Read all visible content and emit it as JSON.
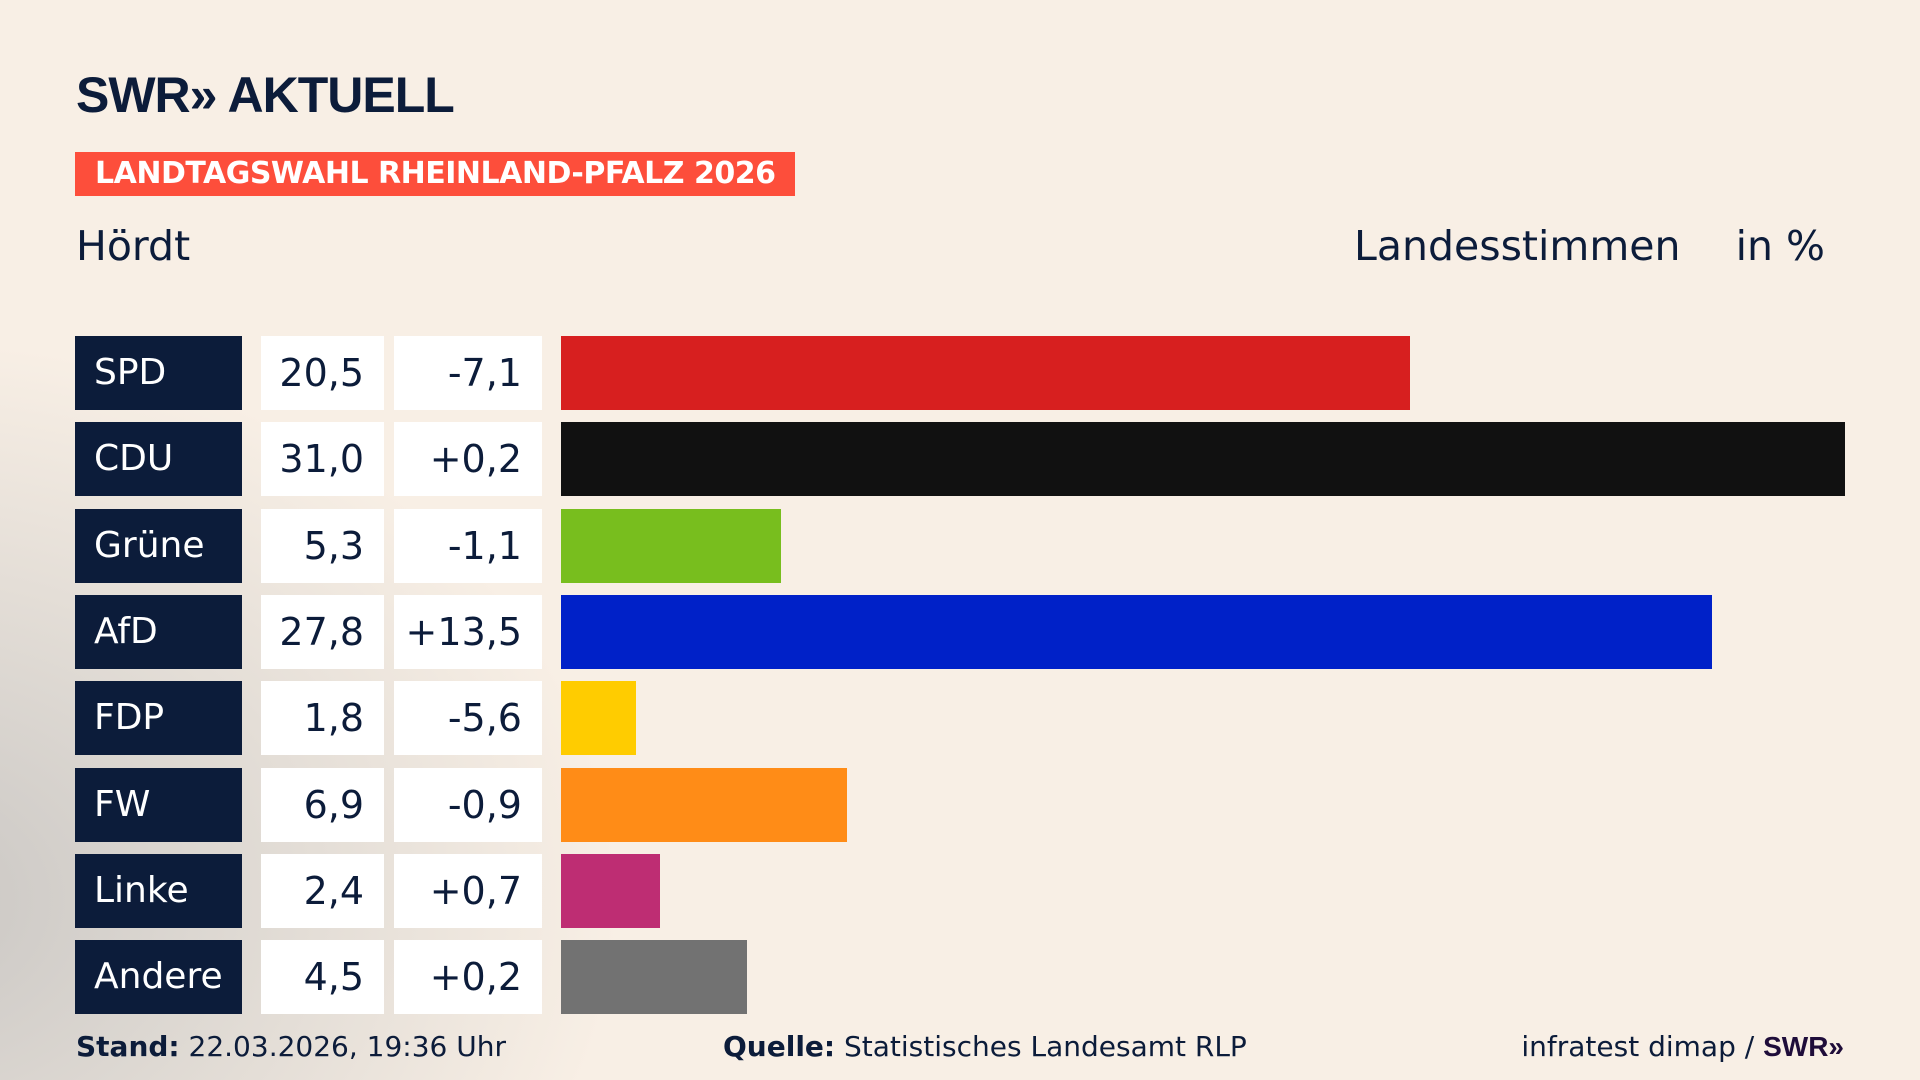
{
  "header": {
    "logo": "SWR» AKTUELL",
    "banner": "LANDTAGSWAHL RHEINLAND-PFALZ 2026",
    "place": "Hördt",
    "measure": "Landesstimmen",
    "unit": "in %"
  },
  "chart_data": {
    "type": "bar",
    "orientation": "horizontal",
    "title": "Hördt",
    "subtitle": "Landesstimmen",
    "unit": "in %",
    "categories": [
      "SPD",
      "CDU",
      "Grüne",
      "AfD",
      "FDP",
      "FW",
      "Linke",
      "Andere"
    ],
    "values": [
      20.5,
      31.0,
      5.3,
      27.8,
      1.8,
      6.9,
      2.4,
      4.5
    ],
    "value_labels": [
      "20,5",
      "31,0",
      "5,3",
      "27,8",
      "1,8",
      "6,9",
      "2,4",
      "4,5"
    ],
    "changes": [
      -7.1,
      0.2,
      -1.1,
      13.5,
      -5.6,
      -0.9,
      0.7,
      0.2
    ],
    "change_labels": [
      "-7,1",
      "+0,2",
      "-1,1",
      "+13,5",
      "-5,6",
      "-0,9",
      "+0,7",
      "+0,2"
    ],
    "colors": [
      "#d71f1f",
      "#111111",
      "#78be1e",
      "#0021c8",
      "#ffcc00",
      "#ff8c17",
      "#be2d73",
      "#727272"
    ],
    "xlim": [
      0,
      31.0
    ],
    "grid": false
  },
  "footer": {
    "stand_label": "Stand:",
    "stand_value": "22.03.2026, 19:36 Uhr",
    "source_label": "Quelle:",
    "source_value": "Statistisches Landesamt RLP",
    "credit": "infratest dimap / ",
    "credit_logo": "SWR»"
  }
}
